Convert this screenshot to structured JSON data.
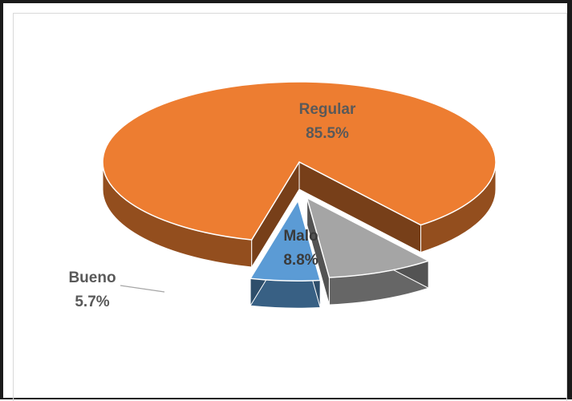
{
  "chart_data": {
    "type": "pie",
    "title": "",
    "categories": [
      "Regular",
      "Malo",
      "Bueno"
    ],
    "values": [
      85.5,
      8.8,
      5.7
    ],
    "value_labels": [
      "85.5%",
      "8.8%",
      "5.7%"
    ],
    "exploded": [
      "Malo",
      "Bueno"
    ],
    "three_d": true,
    "colors": {
      "Regular": "#ed7d31",
      "Malo": "#a5a5a5",
      "Bueno": "#5b9bd5"
    },
    "label_colors": {
      "Regular": "#595959",
      "Malo": "#3a3a3a",
      "Bueno": "#595959"
    },
    "legend": "none"
  }
}
